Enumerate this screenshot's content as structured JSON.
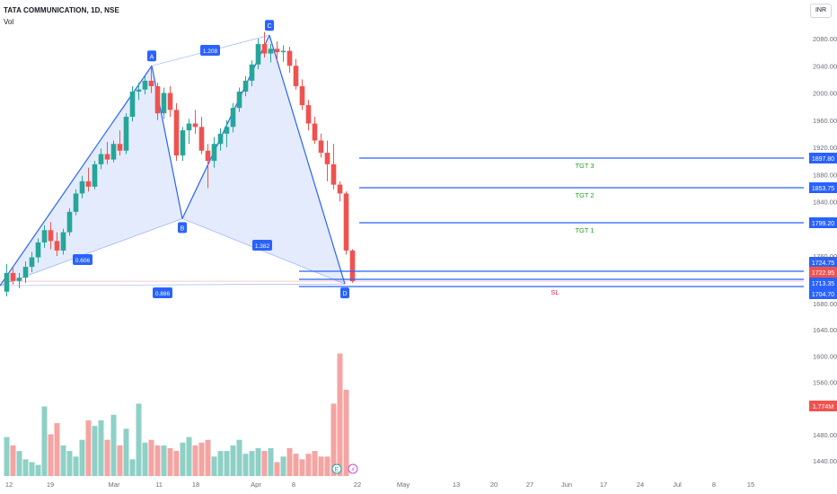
{
  "header": {
    "title": "TATA COMMUNICATION, 1D, NSE",
    "volume_label": "Vol",
    "currency": "INR"
  },
  "chart_data": {
    "type": "candlestick",
    "symbol": "TATA COMMUNICATION",
    "interval": "1D",
    "exchange": "NSE",
    "currency": "INR",
    "ylim": [
      1420,
      2100
    ],
    "y_ticks": [
      2080,
      2040,
      2000,
      1960,
      1920,
      1880,
      1840,
      1760,
      1680,
      1640,
      1600,
      1560,
      1480,
      1440
    ],
    "x_ticks": [
      "12",
      "19",
      "Mar",
      "11",
      "18",
      "Apr",
      "8",
      "22",
      "May",
      "13",
      "20",
      "27",
      "Jun",
      "17",
      "24",
      "Jul",
      "8",
      "15"
    ],
    "ohlc": [
      [
        1700,
        1748,
        1692,
        1735
      ],
      [
        1735,
        1742,
        1712,
        1718
      ],
      [
        1718,
        1735,
        1706,
        1728
      ],
      [
        1728,
        1752,
        1720,
        1744
      ],
      [
        1744,
        1766,
        1736,
        1758
      ],
      [
        1758,
        1786,
        1750,
        1780
      ],
      [
        1780,
        1805,
        1772,
        1798
      ],
      [
        1798,
        1810,
        1770,
        1782
      ],
      [
        1782,
        1795,
        1760,
        1768
      ],
      [
        1768,
        1800,
        1762,
        1795
      ],
      [
        1795,
        1830,
        1790,
        1825
      ],
      [
        1825,
        1858,
        1820,
        1852
      ],
      [
        1852,
        1878,
        1845,
        1870
      ],
      [
        1870,
        1890,
        1855,
        1862
      ],
      [
        1862,
        1900,
        1858,
        1895
      ],
      [
        1895,
        1918,
        1888,
        1910
      ],
      [
        1910,
        1928,
        1895,
        1902
      ],
      [
        1902,
        1930,
        1898,
        1925
      ],
      [
        1925,
        1945,
        1908,
        1915
      ],
      [
        1915,
        1970,
        1910,
        1965
      ],
      [
        1965,
        2010,
        1958,
        2002
      ],
      [
        2002,
        2015,
        1990,
        2005
      ],
      [
        2005,
        2025,
        1998,
        2018
      ],
      [
        2018,
        2038,
        2000,
        2010
      ],
      [
        2010,
        2015,
        1960,
        1970
      ],
      [
        1970,
        2008,
        1962,
        2000
      ],
      [
        2000,
        2010,
        1965,
        1975
      ],
      [
        1975,
        1985,
        1900,
        1908
      ],
      [
        1908,
        1950,
        1900,
        1945
      ],
      [
        1945,
        1962,
        1925,
        1955
      ],
      [
        1955,
        1975,
        1940,
        1950
      ],
      [
        1950,
        1965,
        1910,
        1915
      ],
      [
        1915,
        1925,
        1860,
        1900
      ],
      [
        1900,
        1935,
        1890,
        1925
      ],
      [
        1925,
        1948,
        1915,
        1940
      ],
      [
        1940,
        1960,
        1920,
        1950
      ],
      [
        1950,
        1985,
        1942,
        1978
      ],
      [
        1978,
        2008,
        1972,
        2002
      ],
      [
        2002,
        2025,
        1995,
        2018
      ],
      [
        2018,
        2048,
        2010,
        2042
      ],
      [
        2042,
        2080,
        2035,
        2072
      ],
      [
        2072,
        2090,
        2052,
        2058
      ],
      [
        2058,
        2072,
        2045,
        2065
      ],
      [
        2065,
        2076,
        2048,
        2060
      ],
      [
        2060,
        2070,
        2046,
        2062
      ],
      [
        2062,
        2068,
        2030,
        2040
      ],
      [
        2040,
        2050,
        2005,
        2010
      ],
      [
        2010,
        2020,
        1975,
        1982
      ],
      [
        1982,
        1990,
        1945,
        1955
      ],
      [
        1955,
        1965,
        1925,
        1930
      ],
      [
        1930,
        1940,
        1905,
        1912
      ],
      [
        1912,
        1930,
        1870,
        1895
      ],
      [
        1895,
        1925,
        1858,
        1865
      ],
      [
        1865,
        1870,
        1840,
        1852
      ],
      [
        1852,
        1855,
        1762,
        1768
      ],
      [
        1768,
        1770,
        1715,
        1723
      ]
    ],
    "volume": [
      {
        "label": "1.774M",
        "value": 1.774
      },
      {
        "values": [
          28,
          22,
          18,
          12,
          10,
          8,
          50,
          30,
          38,
          22,
          18,
          14,
          26,
          40,
          36,
          40,
          26,
          44,
          22,
          34,
          12,
          52,
          24,
          26,
          22,
          22,
          20,
          18,
          24,
          28,
          22,
          24,
          26,
          14,
          18,
          18,
          22,
          26,
          16,
          18,
          20,
          18,
          20,
          10,
          14,
          20,
          16,
          12,
          16,
          18,
          14,
          14,
          52,
          88,
          62
        ]
      }
    ],
    "harmonic_pattern": {
      "points": [
        {
          "label": "A",
          "price": 2040
        },
        {
          "label": "B",
          "price": 1815
        },
        {
          "label": "C",
          "price": 2085
        },
        {
          "label": "D",
          "price": 1713
        }
      ],
      "ratios": [
        "1.208",
        "0.606",
        "1.382",
        "0.886"
      ]
    },
    "levels": [
      {
        "name": "TGT 3",
        "value": "1897.80",
        "kind": "target"
      },
      {
        "name": "TGT 2",
        "value": "1853.75",
        "kind": "target"
      },
      {
        "name": "TGT 1",
        "value": "1799.20",
        "kind": "target"
      },
      {
        "name": "",
        "value": "1724.75",
        "kind": "entry"
      },
      {
        "name": "",
        "value": "1713.35",
        "kind": "entry"
      },
      {
        "name": "SL",
        "value": "1704.70",
        "kind": "stop"
      }
    ],
    "last_price": "1722.95",
    "last_volume_label": "1.774M",
    "event_markers": [
      "E",
      "⚡"
    ],
    "colors": {
      "up": "#26a69a",
      "down": "#ef5350",
      "up_volume": "#8fd0c6",
      "down_volume": "#f4a4a2",
      "pattern": "#2962ff",
      "pattern_fill": "#dfe7fb",
      "target_text": "#22a022",
      "stop_text": "#e0245e",
      "last_price": "#ef5350"
    }
  }
}
